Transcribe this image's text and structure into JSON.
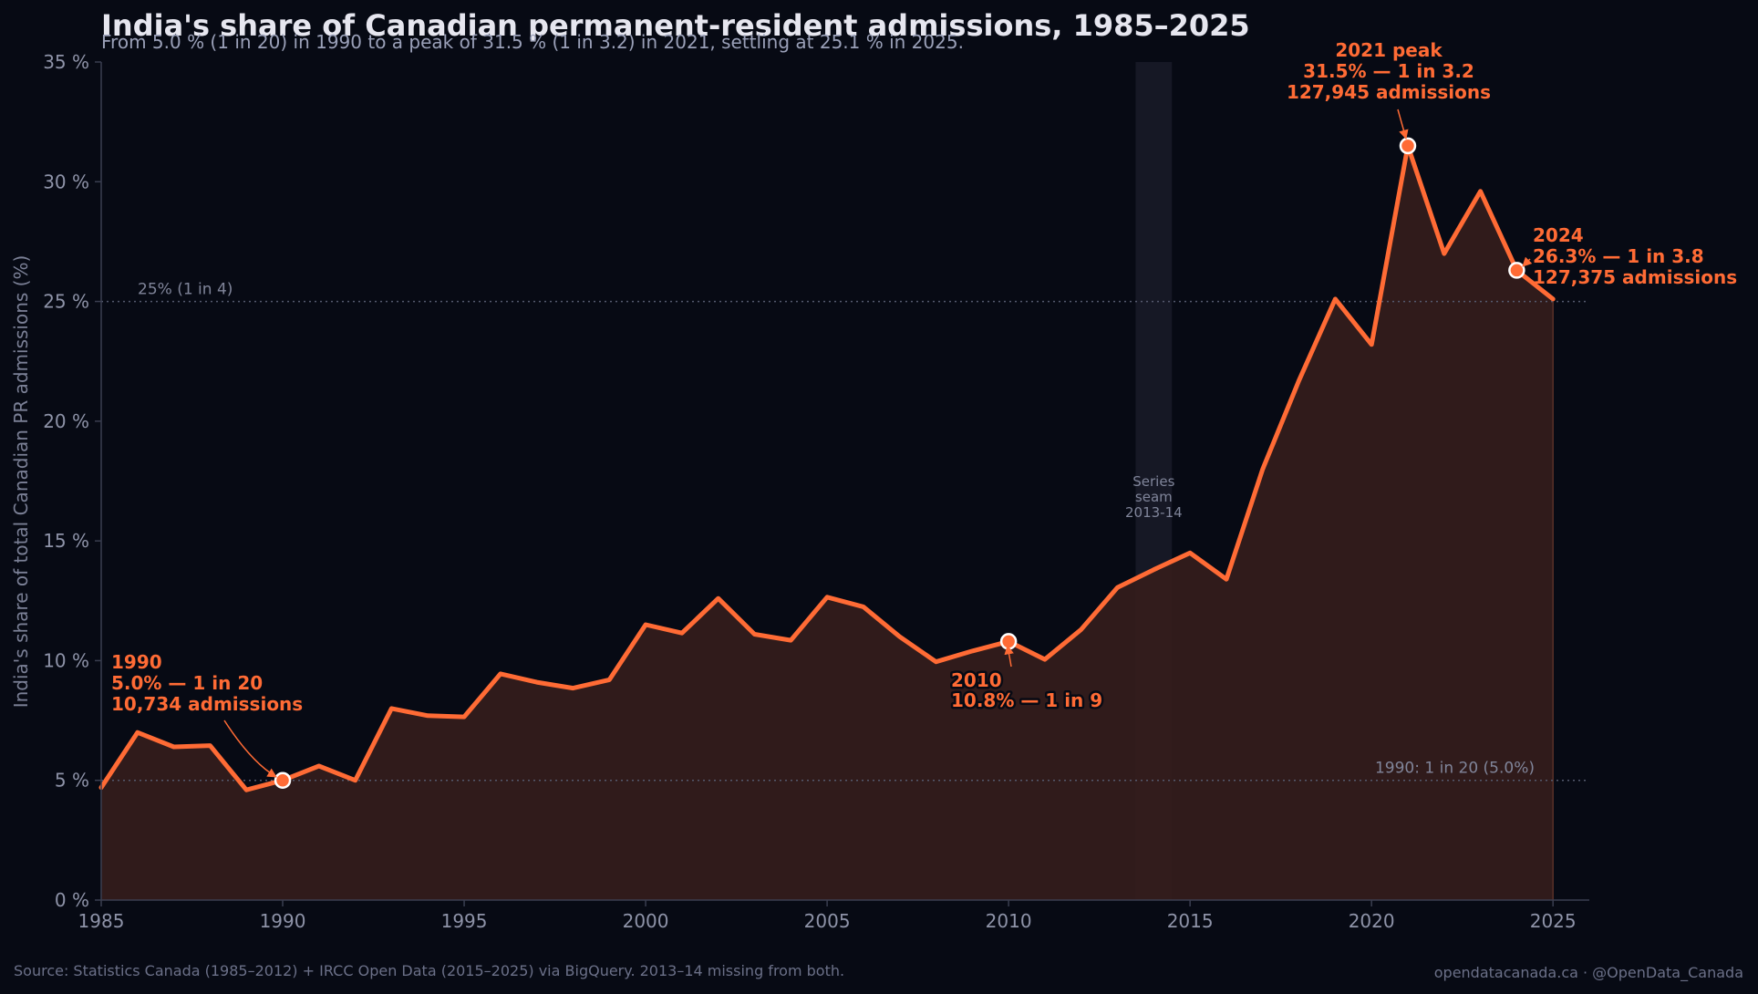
{
  "colors": {
    "background": "#070a14",
    "line": "#ff6b35",
    "area": "#351d1c",
    "title": "#e6e6ef",
    "subtitle": "#9aa0b8",
    "muted": "#80859a"
  },
  "chart_data": {
    "type": "area",
    "title": "India's share of Canadian permanent-resident admissions, 1985–2025",
    "subtitle": "From 5.0 % (1 in 20) in 1990 to a peak of 31.5 % (1 in 3.2) in 2021, settling at 25.1 % in 2025.",
    "xlabel": "",
    "ylabel": "India's share of total Canadian PR admissions (%)",
    "xlim": [
      1985,
      2026
    ],
    "ylim": [
      0,
      35
    ],
    "xticks": [
      "1985",
      "1990",
      "1995",
      "2000",
      "2005",
      "2010",
      "2015",
      "2020",
      "2025"
    ],
    "yticks": [
      "0 %",
      "5 %",
      "10 %",
      "15 %",
      "20 %",
      "25 %",
      "30 %",
      "35 %"
    ],
    "grid": false,
    "series": [
      {
        "x": [
          1985,
          1986,
          1987,
          1988,
          1989,
          1990,
          1991,
          1992,
          1993,
          1994,
          1995,
          1996,
          1997,
          1998,
          1999,
          2000,
          2001,
          2002,
          2003,
          2004,
          2005,
          2006,
          2007,
          2008,
          2009,
          2010,
          2011,
          2012,
          2013,
          2014,
          2015,
          2016,
          2017,
          2018,
          2019,
          2020,
          2021,
          2022,
          2023,
          2024,
          2025
        ],
        "y": [
          4.7,
          7.0,
          6.4,
          6.45,
          4.6,
          5.0,
          5.6,
          5.0,
          8.0,
          7.7,
          7.65,
          9.45,
          9.1,
          8.85,
          9.2,
          11.5,
          11.15,
          12.6,
          11.1,
          10.85,
          12.65,
          12.25,
          11.0,
          9.95,
          10.4,
          10.8,
          10.05,
          11.3,
          13.05,
          13.8,
          14.5,
          13.4,
          18.0,
          21.7,
          25.1,
          23.2,
          31.5,
          27.0,
          29.6,
          26.3,
          25.1
        ]
      }
    ],
    "reference_lines": [
      {
        "y": 25,
        "label": "25% (1 in 4)"
      },
      {
        "y": 5,
        "label": "1990: 1 in 20 (5.0%)"
      }
    ],
    "shaded_region": {
      "x": [
        2013.5,
        2014.5
      ],
      "label_lines": [
        "Series",
        "seam",
        "2013-14"
      ]
    },
    "annotations": [
      {
        "x": 1990,
        "y": 5.0,
        "lines": [
          "1990",
          "5.0% — 1 in 20",
          "10,734 admissions"
        ]
      },
      {
        "x": 2010,
        "y": 10.8,
        "lines": [
          "2010",
          "10.8% — 1 in 9"
        ]
      },
      {
        "x": 2021,
        "y": 31.5,
        "lines": [
          "2021 peak",
          "31.5% — 1 in 3.2",
          "127,945 admissions"
        ]
      },
      {
        "x": 2024,
        "y": 26.3,
        "lines": [
          "2024",
          "26.3% — 1 in 3.8",
          "127,375 admissions"
        ]
      }
    ]
  },
  "footer": {
    "source": "Source: Statistics Canada (1985–2012) + IRCC Open Data (2015–2025) via BigQuery. 2013–14 missing from both.",
    "credit": "opendatacanada.ca · @OpenData_Canada"
  }
}
